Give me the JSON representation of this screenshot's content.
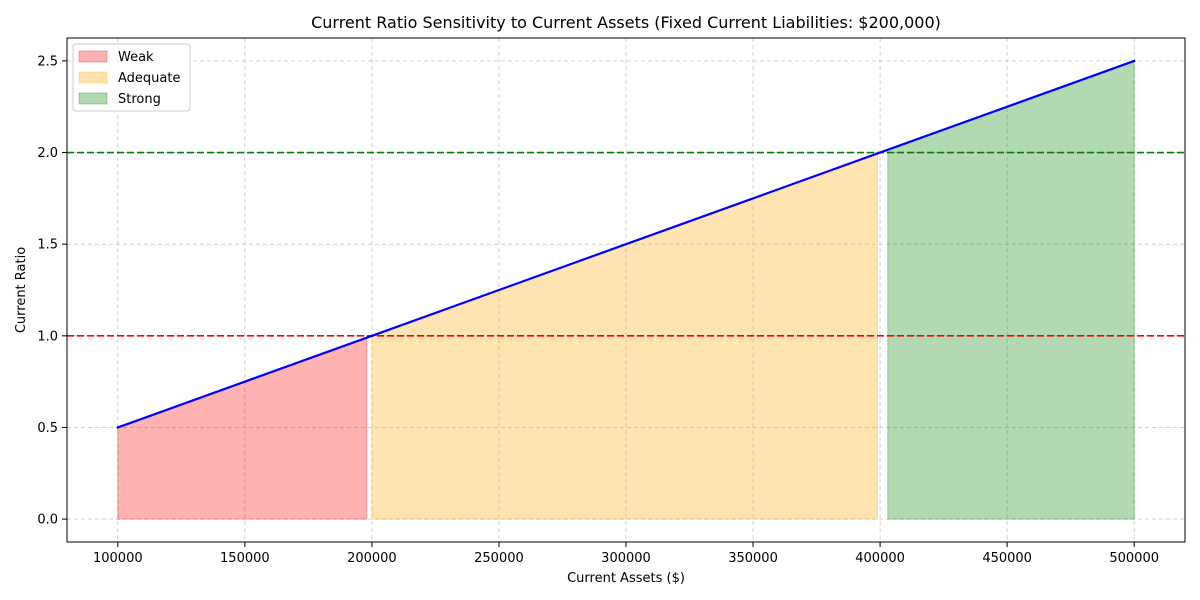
{
  "chart_data": {
    "type": "area",
    "title": "Current Ratio Sensitivity to Current Assets (Fixed Current Liabilities: $200,000)",
    "xlabel": "Current Assets ($)",
    "ylabel": "Current Ratio",
    "xlim": [
      80000,
      520000
    ],
    "ylim": [
      -0.125,
      2.625
    ],
    "x_ticks": [
      100000,
      150000,
      200000,
      250000,
      300000,
      350000,
      400000,
      450000,
      500000
    ],
    "x_tick_labels": [
      "100000",
      "150000",
      "200000",
      "250000",
      "300000",
      "350000",
      "400000",
      "450000",
      "500000"
    ],
    "y_ticks": [
      0.0,
      0.5,
      1.0,
      1.5,
      2.0,
      2.5
    ],
    "y_tick_labels": [
      "0.0",
      "0.5",
      "1.0",
      "1.5",
      "2.0",
      "2.5"
    ],
    "grid": true,
    "legend_position": "top-left",
    "current_liabilities": 200000,
    "line": {
      "x": [
        100000,
        500000
      ],
      "y": [
        0.5,
        2.5
      ],
      "color": "#0000ff"
    },
    "thresholds": [
      {
        "y": 1.0,
        "color": "#ff0000",
        "style": "dashed"
      },
      {
        "y": 2.0,
        "color": "#008000",
        "style": "dashed"
      }
    ],
    "regions": [
      {
        "name": "Weak",
        "x_start": 100000,
        "x_end": 197980,
        "color": "#ff0000",
        "opacity": 0.3
      },
      {
        "name": "Adequate",
        "x_start": 200000,
        "x_end": 398990,
        "color": "#ffa500",
        "opacity": 0.3
      },
      {
        "name": "Strong",
        "x_start": 403030,
        "x_end": 500000,
        "color": "#008000",
        "opacity": 0.3
      }
    ]
  }
}
